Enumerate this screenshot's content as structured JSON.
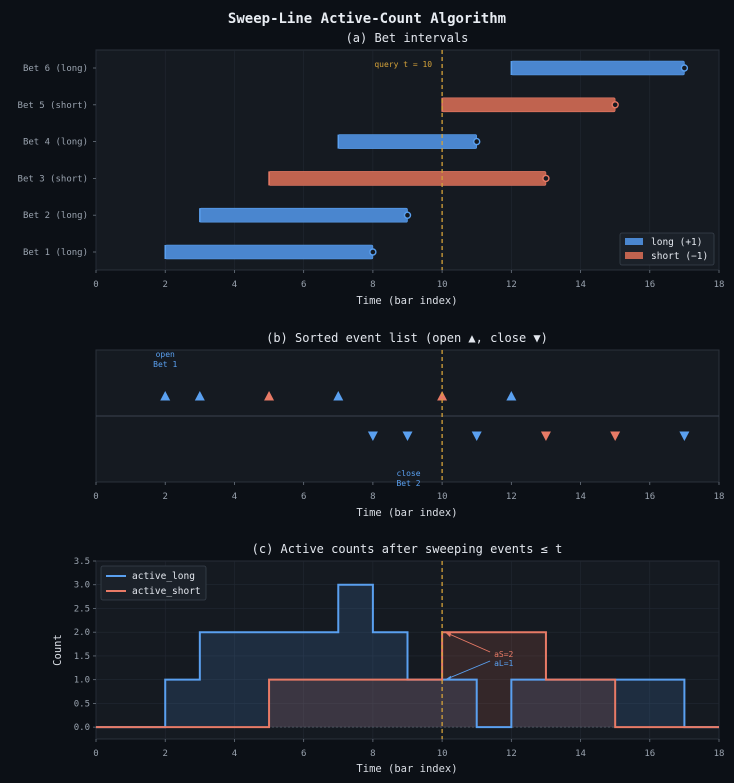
{
  "figure_title": "Sweep-Line Active-Count Algorithm",
  "colors": {
    "long": "#4a86cf",
    "short": "#c0634f",
    "long_line": "#5aa0f0",
    "short_line": "#e87a66",
    "query": "#d4a23a",
    "panel_bg": "#151a21",
    "page_bg": "#0c1016"
  },
  "chart_data": [
    {
      "type": "gantt",
      "title": "(a)  Bet intervals",
      "xlabel": "Time (bar index)",
      "xlim": [
        0,
        18
      ],
      "xticks": [
        0,
        2,
        4,
        6,
        8,
        10,
        12,
        14,
        16,
        18
      ],
      "bets": [
        {
          "label": "Bet 1 (long)",
          "side": "long",
          "start": 2,
          "end": 8
        },
        {
          "label": "Bet 2 (long)",
          "side": "long",
          "start": 3,
          "end": 9
        },
        {
          "label": "Bet 3 (short)",
          "side": "short",
          "start": 5,
          "end": 13
        },
        {
          "label": "Bet 4 (long)",
          "side": "long",
          "start": 7,
          "end": 11
        },
        {
          "label": "Bet 5 (short)",
          "side": "short",
          "start": 10,
          "end": 15
        },
        {
          "label": "Bet 6 (long)",
          "side": "long",
          "start": 12,
          "end": 17
        }
      ],
      "query_t": 10,
      "query_label": "query t = 10",
      "legend": [
        {
          "key": "long",
          "label": "long  (+1)"
        },
        {
          "key": "short",
          "label": "short (−1)"
        }
      ],
      "legend_position": "lower-right"
    },
    {
      "type": "scatter",
      "title": "(b)  Sorted event list  (open ▲, close ▼)",
      "xlabel": "Time (bar index)",
      "xlim": [
        0,
        18
      ],
      "xticks": [
        0,
        2,
        4,
        6,
        8,
        10,
        12,
        14,
        16,
        18
      ],
      "open_events": [
        {
          "t": 2,
          "side": "long"
        },
        {
          "t": 3,
          "side": "long"
        },
        {
          "t": 5,
          "side": "short"
        },
        {
          "t": 7,
          "side": "long"
        },
        {
          "t": 10,
          "side": "short"
        },
        {
          "t": 12,
          "side": "long"
        }
      ],
      "close_events": [
        {
          "t": 8,
          "side": "long"
        },
        {
          "t": 9,
          "side": "long"
        },
        {
          "t": 11,
          "side": "long"
        },
        {
          "t": 13,
          "side": "short"
        },
        {
          "t": 15,
          "side": "short"
        },
        {
          "t": 17,
          "side": "long"
        }
      ],
      "annotations": [
        {
          "t": 2,
          "lines": [
            "open",
            "Bet 1"
          ],
          "where": "above"
        },
        {
          "t": 9,
          "lines": [
            "close",
            "Bet 2"
          ],
          "where": "below"
        }
      ],
      "query_t": 10
    },
    {
      "type": "line",
      "title": "(c)  Active counts after sweeping events ≤ t",
      "xlabel": "Time (bar index)",
      "ylabel": "Count",
      "xlim": [
        0,
        18
      ],
      "ylim": [
        -0.25,
        3.5
      ],
      "xticks": [
        0,
        2,
        4,
        6,
        8,
        10,
        12,
        14,
        16,
        18
      ],
      "yticks": [
        0.0,
        0.5,
        1.0,
        1.5,
        2.0,
        2.5,
        3.0,
        3.5
      ],
      "ytick_labels": [
        "0.0",
        "0.5",
        "1.0",
        "1.5",
        "2.0",
        "2.5",
        "3.0",
        "3.5"
      ],
      "series": [
        {
          "name": "active_long",
          "key": "long",
          "steps_x": [
            0,
            2,
            3,
            7,
            8,
            9,
            11,
            12,
            17,
            18
          ],
          "steps_y": [
            0,
            1,
            2,
            3,
            2,
            1,
            0,
            1,
            0,
            0
          ]
        },
        {
          "name": "active_short",
          "key": "short",
          "steps_x": [
            0,
            5,
            10,
            13,
            15,
            18
          ],
          "steps_y": [
            0,
            1,
            2,
            1,
            0,
            0
          ]
        }
      ],
      "annotations": [
        {
          "text": "aS=2",
          "x": 10,
          "y": 2,
          "key": "short"
        },
        {
          "text": "aL=1",
          "x": 10,
          "y": 1,
          "key": "long"
        }
      ],
      "query_t": 10,
      "legend_position": "top-left"
    }
  ]
}
